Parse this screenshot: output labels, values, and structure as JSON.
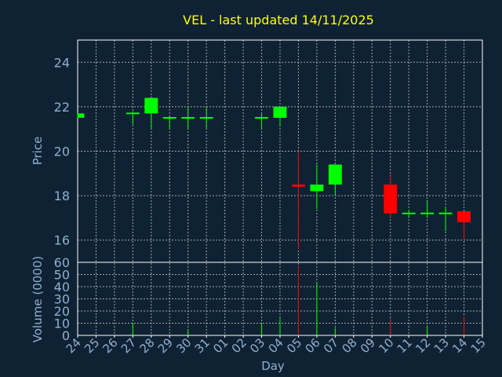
{
  "chart_data": {
    "type": "candlestick",
    "title": "VEL - last updated 14/11/2025",
    "xlabel": "Day",
    "ylabel_price": "Price",
    "ylabel_volume": "Volume (0000)",
    "x_tick_labels": [
      "24",
      "25",
      "26",
      "27",
      "28",
      "29",
      "30",
      "31",
      "01",
      "02",
      "03",
      "04",
      "05",
      "06",
      "07",
      "08",
      "09",
      "10",
      "11",
      "12",
      "13",
      "14",
      "15"
    ],
    "price_ylim": [
      15,
      25
    ],
    "price_yticks": [
      16,
      18,
      20,
      22,
      24
    ],
    "volume_ylim": [
      0,
      60
    ],
    "volume_yticks": [
      0,
      10,
      20,
      30,
      40,
      50,
      60
    ],
    "grid": true,
    "colors": {
      "background": "#0f2233",
      "plot_frame": "#ffffff",
      "grid": "#c8c8c8",
      "title": "#ffff00",
      "axis_text": "#8fb0d0",
      "up": "#00ff00",
      "down": "#ff0000"
    },
    "candles": [
      {
        "day": "24",
        "open": 21.5,
        "high": 21.7,
        "low": 21.5,
        "close": 21.7,
        "volume": 0
      },
      {
        "day": "27",
        "open": 21.7,
        "high": 21.8,
        "low": 21.2,
        "close": 21.7,
        "volume": 10
      },
      {
        "day": "28",
        "open": 21.7,
        "high": 22.4,
        "low": 21.0,
        "close": 22.4,
        "volume": 0
      },
      {
        "day": "29",
        "open": 21.5,
        "high": 21.6,
        "low": 21.0,
        "close": 21.5,
        "volume": 0
      },
      {
        "day": "30",
        "open": 21.5,
        "high": 22.0,
        "low": 21.0,
        "close": 21.5,
        "volume": 5
      },
      {
        "day": "31",
        "open": 21.5,
        "high": 22.0,
        "low": 21.0,
        "close": 21.5,
        "volume": 0
      },
      {
        "day": "03",
        "open": 21.5,
        "high": 21.7,
        "low": 21.0,
        "close": 21.5,
        "volume": 10
      },
      {
        "day": "04",
        "open": 21.5,
        "high": 22.0,
        "low": 21.1,
        "close": 22.0,
        "volume": 14
      },
      {
        "day": "05",
        "open": 18.5,
        "high": 20.0,
        "low": 15.6,
        "close": 18.4,
        "volume": 57
      },
      {
        "day": "06",
        "open": 18.2,
        "high": 19.4,
        "low": 17.4,
        "close": 18.5,
        "volume": 43
      },
      {
        "day": "07",
        "open": 18.5,
        "high": 19.4,
        "low": 18.0,
        "close": 19.4,
        "volume": 6
      },
      {
        "day": "10",
        "open": 18.5,
        "high": 19.0,
        "low": 17.0,
        "close": 17.2,
        "volume": 14
      },
      {
        "day": "11",
        "open": 17.2,
        "high": 17.3,
        "low": 17.0,
        "close": 17.2,
        "volume": 0
      },
      {
        "day": "12",
        "open": 17.2,
        "high": 17.8,
        "low": 17.0,
        "close": 17.2,
        "volume": 8
      },
      {
        "day": "13",
        "open": 17.2,
        "high": 17.5,
        "low": 16.4,
        "close": 17.2,
        "volume": 0
      },
      {
        "day": "14",
        "open": 17.3,
        "high": 17.3,
        "low": 16.0,
        "close": 16.8,
        "volume": 16
      }
    ]
  }
}
